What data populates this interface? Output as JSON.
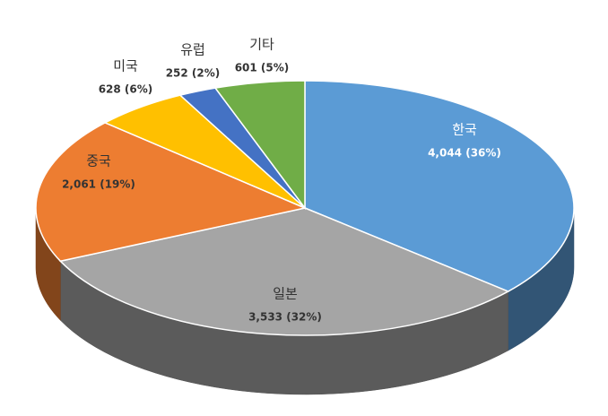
{
  "chart_data": {
    "type": "pie",
    "categories": [
      "한국",
      "일본",
      "중국",
      "미국",
      "유럽",
      "기타"
    ],
    "values": [
      4044,
      3533,
      2061,
      628,
      252,
      601
    ],
    "value_labels": [
      "4,044 (36%)",
      "3,533 (32%)",
      "2,061 (19%)",
      "628 (6%)",
      "252 (2%)",
      "601 (5%)"
    ],
    "colors": [
      "#5b9bd5",
      "#a5a5a5",
      "#ed7d31",
      "#ffc000",
      "#4472c4",
      "#70ad47"
    ]
  }
}
